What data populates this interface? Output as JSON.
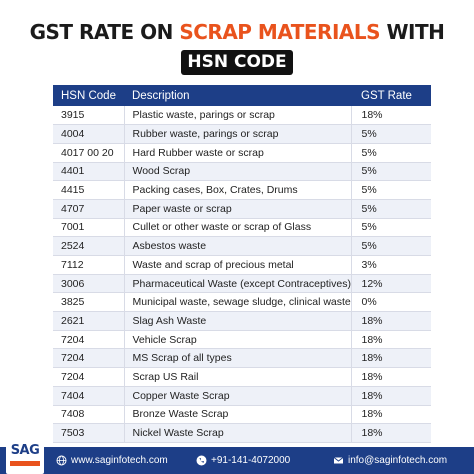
{
  "title": {
    "line1_part1": "GST RATE ON ",
    "line1_accent": "SCRAP MATERIALS",
    "line1_part2": " WITH",
    "badge": "HSN CODE"
  },
  "table": {
    "headers": {
      "code": "HSN Code",
      "description": "Description",
      "rate": "GST Rate"
    },
    "rows": [
      {
        "code": "3915",
        "description": "Plastic waste, parings or scrap",
        "rate": "18%"
      },
      {
        "code": "4004",
        "description": "Rubber waste, parings or scrap",
        "rate": "5%"
      },
      {
        "code": "4017 00 20",
        "description": "Hard Rubber waste or scrap",
        "rate": "5%"
      },
      {
        "code": "4401",
        "description": "Wood Scrap",
        "rate": "5%"
      },
      {
        "code": "4415",
        "description": "Packing cases, Box, Crates, Drums",
        "rate": "5%"
      },
      {
        "code": "4707",
        "description": "Paper waste or scrap",
        "rate": "5%"
      },
      {
        "code": "7001",
        "description": "Cullet or other waste or scrap of Glass",
        "rate": "5%"
      },
      {
        "code": "2524",
        "description": "Asbestos waste",
        "rate": "5%"
      },
      {
        "code": "7112",
        "description": "Waste and scrap of precious metal",
        "rate": "3%"
      },
      {
        "code": "3006",
        "description": "Pharmaceutical Waste (except Contraceptives)",
        "rate": "12%"
      },
      {
        "code": "3825",
        "description": "Municipal waste, sewage sludge, clinical waste",
        "rate": "0%"
      },
      {
        "code": "2621",
        "description": "Slag Ash Waste",
        "rate": "18%"
      },
      {
        "code": "7204",
        "description": "Vehicle Scrap",
        "rate": "18%"
      },
      {
        "code": "7204",
        "description": "MS Scrap of all types",
        "rate": "18%"
      },
      {
        "code": "7204",
        "description": "Scrap US Rail",
        "rate": "18%"
      },
      {
        "code": "7404",
        "description": "Copper Waste Scrap",
        "rate": "18%"
      },
      {
        "code": "7408",
        "description": "Bronze Waste Scrap",
        "rate": "18%"
      },
      {
        "code": "7503",
        "description": "Nickel Waste Scrap",
        "rate": "18%"
      }
    ]
  },
  "footer": {
    "logo": "SAG",
    "website": "www.saginfotech.com",
    "phone": "+91-141-4072000",
    "email": "info@saginfotech.com",
    "icons": [
      "globe-icon",
      "phone-icon",
      "mail-icon"
    ]
  },
  "colors": {
    "accent": "#e9531d",
    "header_bg": "#1d3e87",
    "badge_bg": "#111111"
  }
}
